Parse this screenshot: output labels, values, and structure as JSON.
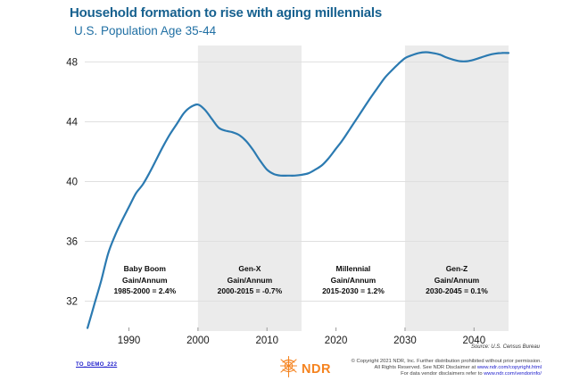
{
  "chart_data": {
    "type": "line",
    "title": "Household formation to rise with aging millennials",
    "subtitle": "U.S. Population Age 35-44",
    "x": [
      1984,
      1985,
      1986,
      1987,
      1988,
      1989,
      1990,
      1991,
      1992,
      1993,
      1994,
      1995,
      1996,
      1997,
      1998,
      1999,
      2000,
      2001,
      2002,
      2003,
      2004,
      2005,
      2006,
      2007,
      2008,
      2009,
      2010,
      2011,
      2012,
      2013,
      2014,
      2015,
      2016,
      2017,
      2018,
      2019,
      2020,
      2021,
      2022,
      2023,
      2024,
      2025,
      2026,
      2027,
      2028,
      2029,
      2030,
      2031,
      2032,
      2033,
      2034,
      2035,
      2036,
      2037,
      2038,
      2039,
      2040,
      2041,
      2042,
      2043,
      2044,
      2045
    ],
    "values": [
      30.2,
      31.8,
      33.4,
      35.2,
      36.4,
      37.4,
      38.3,
      39.2,
      39.8,
      40.6,
      41.5,
      42.4,
      43.2,
      43.9,
      44.6,
      45.0,
      45.15,
      44.8,
      44.2,
      43.6,
      43.4,
      43.3,
      43.1,
      42.7,
      42.1,
      41.4,
      40.8,
      40.5,
      40.4,
      40.4,
      40.4,
      40.45,
      40.55,
      40.8,
      41.1,
      41.6,
      42.2,
      42.8,
      43.5,
      44.2,
      44.9,
      45.6,
      46.25,
      46.9,
      47.4,
      47.85,
      48.25,
      48.45,
      48.6,
      48.65,
      48.6,
      48.5,
      48.3,
      48.15,
      48.05,
      48.05,
      48.15,
      48.3,
      48.45,
      48.55,
      48.6,
      48.6
    ],
    "xlim": [
      1983.6,
      2045
    ],
    "ylim": [
      30,
      49.1
    ],
    "x_ticks": [
      1990,
      2000,
      2010,
      2020,
      2030,
      2040
    ],
    "y_ticks": [
      32,
      36,
      40,
      44,
      48
    ],
    "grid": "horizontal",
    "legend": "none",
    "line_color": "#2b7ab1",
    "band_color": "#ebebeb",
    "bands": [
      [
        2000,
        2015
      ],
      [
        2030,
        2045
      ]
    ],
    "annotations": [
      {
        "line1": "Baby Boom",
        "line2": "Gain/Annum",
        "line3": "1985-2000 = 2.4%",
        "center_year": 1992.3
      },
      {
        "line1": "Gen-X",
        "line2": "Gain/Annum",
        "line3": "2000-2015 = -0.7%",
        "center_year": 2007.5
      },
      {
        "line1": "Millennial",
        "line2": "Gain/Annum",
        "line3": "2015-2030 = 1.2%",
        "center_year": 2022.5
      },
      {
        "line1": "Gen-Z",
        "line2": "Gain/Annum",
        "line3": "2030-2045 = 0.1%",
        "center_year": 2037.5
      }
    ],
    "source_note": "Source: U.S. Census Bureau"
  },
  "footer": {
    "doc_link": "TO_DEMO_222",
    "logo_text": "NDR",
    "copyright_line1": "© Copyright 2021 NDR, Inc. Further distribution prohibited without prior permission.",
    "copyright_line2_prefix": "All Rights Reserved. See NDR Disclaimer at ",
    "copyright_line2_link": "www.ndr.com/copyright.html",
    "copyright_line3_prefix": "For data vendor disclaimers refer to ",
    "copyright_line3_link": "www.ndr.com/vendorinfo/"
  }
}
